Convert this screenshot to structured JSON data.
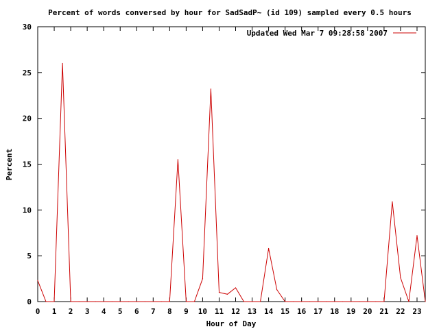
{
  "chart_data": {
    "type": "line",
    "title": "Percent of words conversed by hour for SadSadP~ (id 109) sampled every 0.5 hours",
    "xlabel": "Hour of Day",
    "ylabel": "Percent",
    "xlim": [
      0,
      23.5
    ],
    "ylim": [
      0,
      30
    ],
    "x_ticks": [
      "0",
      "1",
      "2",
      "3",
      "4",
      "5",
      "6",
      "7",
      "8",
      "9",
      "10",
      "11",
      "12",
      "13",
      "14",
      "15",
      "16",
      "17",
      "18",
      "19",
      "20",
      "21",
      "22",
      "23"
    ],
    "y_ticks": [
      "0",
      "5",
      "10",
      "15",
      "20",
      "25",
      "30"
    ],
    "grid": false,
    "legend_position": "top-right",
    "colors": {
      "series": "#cc0000",
      "axes": "#000000",
      "background": "#ffffff"
    },
    "series": [
      {
        "name": "Updated Wed Mar  7 09:28:58 2007",
        "x": [
          0,
          0.5,
          1,
          1.5,
          2,
          2.5,
          3,
          3.5,
          4,
          4.5,
          5,
          5.5,
          6,
          6.5,
          7,
          7.5,
          8,
          8.5,
          9,
          9.5,
          10,
          10.5,
          11,
          11.5,
          12,
          12.5,
          13,
          13.5,
          14,
          14.5,
          15,
          15.5,
          16,
          16.5,
          17,
          17.5,
          18,
          18.5,
          19,
          19.5,
          20,
          20.5,
          21,
          21.5,
          22,
          22.5,
          23,
          23.5
        ],
        "values": [
          2.3,
          0,
          0,
          26.0,
          0,
          0,
          0,
          0,
          0,
          0,
          0,
          0,
          0,
          0,
          0,
          0,
          0,
          15.5,
          0,
          0,
          2.5,
          23.2,
          1.0,
          0.8,
          1.5,
          0,
          0,
          0,
          5.8,
          1.3,
          0,
          0,
          0,
          0,
          0,
          0,
          0,
          0,
          0,
          0,
          0,
          0,
          0,
          10.9,
          2.6,
          0,
          7.2,
          0
        ]
      }
    ]
  }
}
